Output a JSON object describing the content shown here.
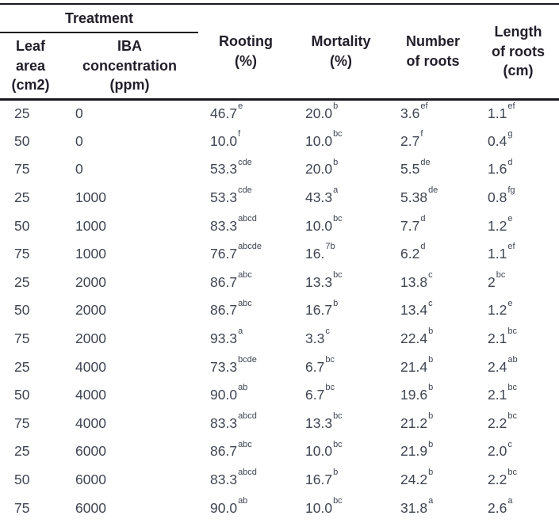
{
  "colors": {
    "page_bg": "#ffffff",
    "header_text": "#221e29",
    "body_text": "#3f4551",
    "line_color": "#19181f"
  },
  "table": {
    "group_header": {
      "label": "Treatment"
    },
    "sub_columns": [
      {
        "id": "leaf-area",
        "label": "Leaf\narea\n(cm2)"
      },
      {
        "id": "iba-concentration",
        "label": "IBA\nconcentration\n(ppm)"
      }
    ],
    "value_columns": [
      {
        "id": "rooting",
        "label": "Rooting\n(%)"
      },
      {
        "id": "mortality",
        "label": "Mortality\n(%)"
      },
      {
        "id": "number-of-roots",
        "label": "Number\nof roots"
      },
      {
        "id": "length-of-roots",
        "label": "Length\nof roots\n(cm)"
      }
    ],
    "rows": [
      {
        "cells": [
          {
            "value": "25"
          },
          {
            "value": "0"
          },
          {
            "value": "46.7",
            "sup": "e"
          },
          {
            "value": "20.0",
            "sup": "b"
          },
          {
            "value": "3.6",
            "sup": "ef"
          },
          {
            "value": "1.1",
            "sup": "ef"
          }
        ]
      },
      {
        "cells": [
          {
            "value": "50"
          },
          {
            "value": "0"
          },
          {
            "value": "10.0",
            "sup": "f"
          },
          {
            "value": "10.0",
            "sup": "bc"
          },
          {
            "value": "2.7",
            "sup": "f"
          },
          {
            "value": "0.4",
            "sup": "g"
          }
        ]
      },
      {
        "cells": [
          {
            "value": "75"
          },
          {
            "value": "0"
          },
          {
            "value": "53.3",
            "sup": "cde"
          },
          {
            "value": "20.0",
            "sup": "b"
          },
          {
            "value": "5.5",
            "sup": "de"
          },
          {
            "value": "1.6",
            "sup": "d"
          }
        ]
      },
      {
        "cells": [
          {
            "value": "25"
          },
          {
            "value": "1000"
          },
          {
            "value": "53.3",
            "sup": "cde"
          },
          {
            "value": "43.3",
            "sup": "a"
          },
          {
            "value": "5.38",
            "sup": "de"
          },
          {
            "value": "0.8",
            "sup": "fg"
          }
        ]
      },
      {
        "cells": [
          {
            "value": "50"
          },
          {
            "value": "1000"
          },
          {
            "value": "83.3",
            "sup": "abcd"
          },
          {
            "value": "10.0",
            "sup": "bc"
          },
          {
            "value": "7.7",
            "sup": "d"
          },
          {
            "value": "1.2",
            "sup": "e"
          }
        ]
      },
      {
        "cells": [
          {
            "value": "75"
          },
          {
            "value": "1000"
          },
          {
            "value": "76.7",
            "sup": "abcde"
          },
          {
            "value": "16.",
            "sup": "7b"
          },
          {
            "value": "6.2",
            "sup": "d"
          },
          {
            "value": "1.1",
            "sup": "ef"
          }
        ]
      },
      {
        "cells": [
          {
            "value": "25"
          },
          {
            "value": "2000"
          },
          {
            "value": "86.7",
            "sup": "abc"
          },
          {
            "value": "13.3",
            "sup": "bc"
          },
          {
            "value": "13.8",
            "sup": "c"
          },
          {
            "value": "2",
            "sup": "bc"
          }
        ]
      },
      {
        "cells": [
          {
            "value": "50"
          },
          {
            "value": "2000"
          },
          {
            "value": "86.7",
            "sup": "abc"
          },
          {
            "value": "16.7",
            "sup": "b"
          },
          {
            "value": "13.4",
            "sup": "c"
          },
          {
            "value": "1.2",
            "sup": "e"
          }
        ]
      },
      {
        "cells": [
          {
            "value": "75"
          },
          {
            "value": "2000"
          },
          {
            "value": "93.3",
            "sup": "a"
          },
          {
            "value": "3.3",
            "sup": "c"
          },
          {
            "value": "22.4",
            "sup": "b"
          },
          {
            "value": "2.1",
            "sup": "bc"
          }
        ]
      },
      {
        "cells": [
          {
            "value": "25"
          },
          {
            "value": "4000"
          },
          {
            "value": "73.3",
            "sup": "bcde"
          },
          {
            "value": "6.7",
            "sup": "bc"
          },
          {
            "value": "21.4",
            "sup": "b"
          },
          {
            "value": "2.4",
            "sup": "ab"
          }
        ]
      },
      {
        "cells": [
          {
            "value": "50"
          },
          {
            "value": "4000"
          },
          {
            "value": "90.0",
            "sup": "ab"
          },
          {
            "value": "6.7",
            "sup": "bc"
          },
          {
            "value": "19.6",
            "sup": "b"
          },
          {
            "value": "2.1",
            "sup": "bc"
          }
        ]
      },
      {
        "cells": [
          {
            "value": "75"
          },
          {
            "value": "4000"
          },
          {
            "value": "83.3",
            "sup": "abcd"
          },
          {
            "value": "13.3",
            "sup": "bc"
          },
          {
            "value": "21.2",
            "sup": "b"
          },
          {
            "value": "2.2",
            "sup": "bc"
          }
        ]
      },
      {
        "cells": [
          {
            "value": "25"
          },
          {
            "value": "6000"
          },
          {
            "value": "86.7",
            "sup": "abc"
          },
          {
            "value": "10.0",
            "sup": "bc"
          },
          {
            "value": "21.9",
            "sup": "b"
          },
          {
            "value": "2.0",
            "sup": "c"
          }
        ]
      },
      {
        "cells": [
          {
            "value": "50"
          },
          {
            "value": "6000"
          },
          {
            "value": "83.3",
            "sup": "abcd"
          },
          {
            "value": "16.7",
            "sup": "b"
          },
          {
            "value": "24.2",
            "sup": "b"
          },
          {
            "value": "2.2",
            "sup": "bc"
          }
        ]
      },
      {
        "cells": [
          {
            "value": "75"
          },
          {
            "value": "6000"
          },
          {
            "value": "90.0",
            "sup": "ab"
          },
          {
            "value": "10.0",
            "sup": "bc"
          },
          {
            "value": "31.8",
            "sup": "a"
          },
          {
            "value": "2.6",
            "sup": "a"
          }
        ]
      }
    ]
  }
}
